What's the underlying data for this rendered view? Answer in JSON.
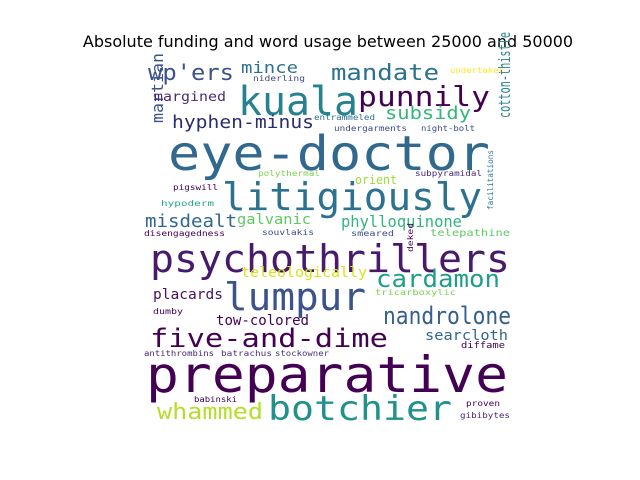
{
  "chart_data": {
    "type": "wordcloud",
    "title": "Absolute funding and word usage between 25000 and 50000",
    "background": "#ffffff",
    "palette": "viridis",
    "words": [
      {
        "text": "preparative",
        "color": "#440154"
      },
      {
        "text": "eye-doctor",
        "color": "#31688e"
      },
      {
        "text": "psychothrillers",
        "color": "#481a6c"
      },
      {
        "text": "litigiously",
        "color": "#2c728e"
      },
      {
        "text": "kuala",
        "color": "#26828e"
      },
      {
        "text": "lumpur",
        "color": "#3b528b"
      },
      {
        "text": "botchier",
        "color": "#21918c"
      },
      {
        "text": "five-and-dime",
        "color": "#440154"
      },
      {
        "text": "punnily",
        "color": "#440154"
      },
      {
        "text": "cardamon",
        "color": "#1f9e89"
      },
      {
        "text": "nandrolone",
        "color": "#35608d"
      },
      {
        "text": "mandate",
        "color": "#2c728e"
      },
      {
        "text": "wp'ers",
        "color": "#3b528b"
      },
      {
        "text": "whammed",
        "color": "#b5de2b"
      },
      {
        "text": "hyphen-minus",
        "color": "#2a2d6e"
      },
      {
        "text": "subsidy",
        "color": "#35b779"
      },
      {
        "text": "misdealt",
        "color": "#31688e"
      },
      {
        "text": "phylloquinone",
        "color": "#31b57b"
      },
      {
        "text": "cotton-thistle",
        "color": "#26828e"
      },
      {
        "text": "martian",
        "color": "#3b528b"
      },
      {
        "text": "mince",
        "color": "#2c728e"
      },
      {
        "text": "placards",
        "color": "#471063"
      },
      {
        "text": "tow-colored",
        "color": "#440154"
      },
      {
        "text": "searcloth",
        "color": "#31688e"
      },
      {
        "text": "teleologically",
        "color": "#d8e219"
      },
      {
        "text": "galvanic",
        "color": "#5ec962"
      },
      {
        "text": "margined",
        "color": "#472d7b"
      },
      {
        "text": "orient",
        "color": "#a0da39"
      },
      {
        "text": "telepathine",
        "color": "#5ec962"
      },
      {
        "text": "diffame",
        "color": "#440154"
      },
      {
        "text": "undertaker",
        "color": "#fde725"
      },
      {
        "text": "niderling",
        "color": "#3e4989"
      },
      {
        "text": "entrammeled",
        "color": "#2c728e"
      },
      {
        "text": "undergarments",
        "color": "#3e4989"
      },
      {
        "text": "night-bolt",
        "color": "#3e4989"
      },
      {
        "text": "polythermal",
        "color": "#7ad151"
      },
      {
        "text": "subpyramidal",
        "color": "#482878"
      },
      {
        "text": "pigswill",
        "color": "#440154"
      },
      {
        "text": "hypoderm",
        "color": "#22a884"
      },
      {
        "text": "facilitations",
        "color": "#2a788e"
      },
      {
        "text": "disengagedness",
        "color": "#440154"
      },
      {
        "text": "souvlakis",
        "color": "#3e4989"
      },
      {
        "text": "smeared",
        "color": "#3e4989"
      },
      {
        "text": "deked",
        "color": "#440154"
      },
      {
        "text": "tricarboxylic",
        "color": "#7ad151"
      },
      {
        "text": "dumby",
        "color": "#440154"
      },
      {
        "text": "antithrombins",
        "color": "#482878"
      },
      {
        "text": "batrachus",
        "color": "#46327e"
      },
      {
        "text": "stockowner",
        "color": "#46327e"
      },
      {
        "text": "babinski",
        "color": "#440154"
      },
      {
        "text": "proven",
        "color": "#440154"
      },
      {
        "text": "gibibytes",
        "color": "#482878"
      }
    ]
  }
}
